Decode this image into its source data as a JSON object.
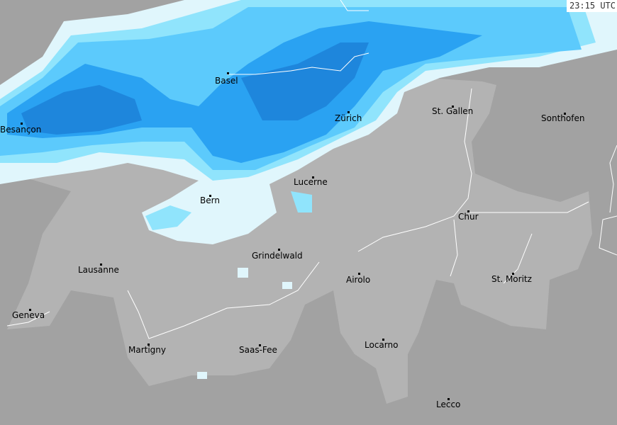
{
  "timestamp": "23:15 UTC",
  "colors": {
    "outside_land": "#a2a2a2",
    "switzerland_land": "#b3b3b3",
    "precip_very_light": "#e0f6fc",
    "precip_light": "#90e4fc",
    "precip_moderate": "#5ccafc",
    "precip_heavy": "#2aa2f2",
    "precip_very_heavy": "#1e86dc",
    "borders": "#ffffff"
  },
  "cities": [
    {
      "name": "Basel"
    },
    {
      "name": "Besançon"
    },
    {
      "name": "Zürich"
    },
    {
      "name": "St. Gallen"
    },
    {
      "name": "Sonthofen"
    },
    {
      "name": "Lucerne"
    },
    {
      "name": "Bern"
    },
    {
      "name": "Chur"
    },
    {
      "name": "Grindelwald"
    },
    {
      "name": "Lausanne"
    },
    {
      "name": "Airolo"
    },
    {
      "name": "St. Moritz"
    },
    {
      "name": "Geneva"
    },
    {
      "name": "Martigny"
    },
    {
      "name": "Saas-Fee"
    },
    {
      "name": "Locarno"
    },
    {
      "name": "Lecco"
    }
  ]
}
